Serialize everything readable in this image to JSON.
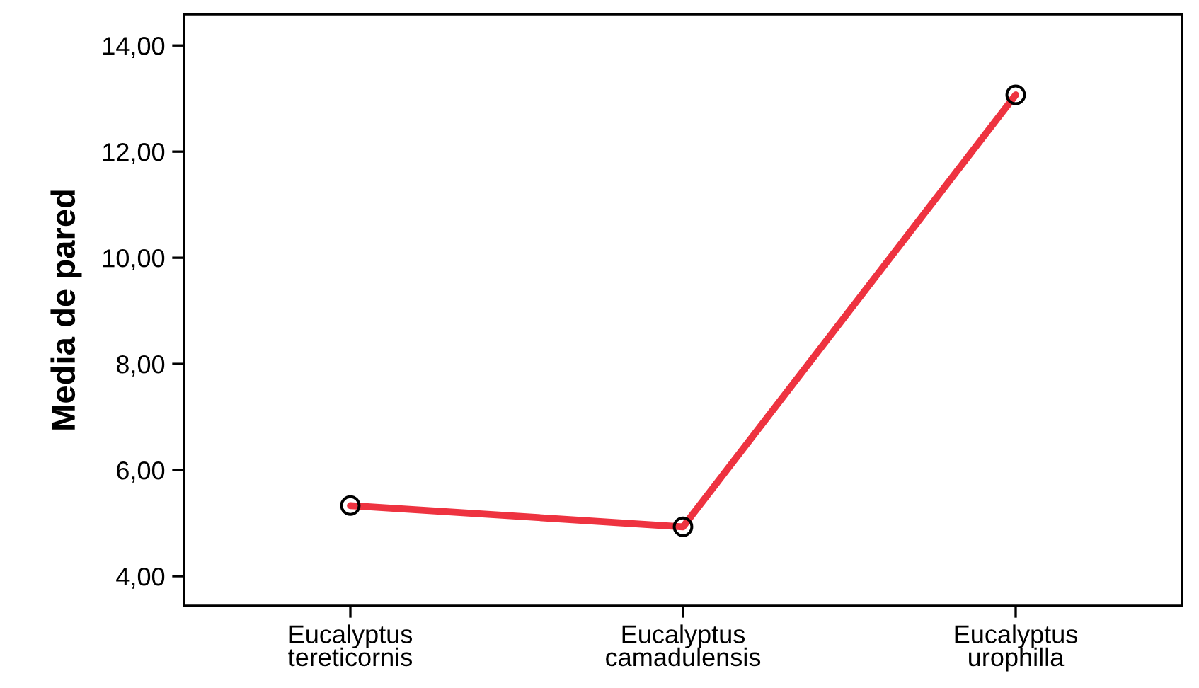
{
  "chart_data": {
    "type": "line",
    "ylabel": "Media de pared",
    "categories": [
      "Eucalyptus\ntereticornis",
      "Eucalyptus\ncamadulensis",
      "Eucalyptus\nurophilla"
    ],
    "series": [
      {
        "color": "#ee3340",
        "values": [
          5.33,
          4.93,
          13.07
        ]
      }
    ],
    "marker": "circle",
    "line_style": "solid",
    "grid": false,
    "ylim": [
      3.44,
      14.59
    ],
    "yticks": [
      {
        "value": 4,
        "label": "4,00"
      },
      {
        "value": 6,
        "label": "6,00"
      },
      {
        "value": 8,
        "label": "8,00"
      },
      {
        "value": 10,
        "label": "10,00"
      },
      {
        "value": 12,
        "label": "12,00"
      },
      {
        "value": 14,
        "label": "14,00"
      }
    ]
  }
}
